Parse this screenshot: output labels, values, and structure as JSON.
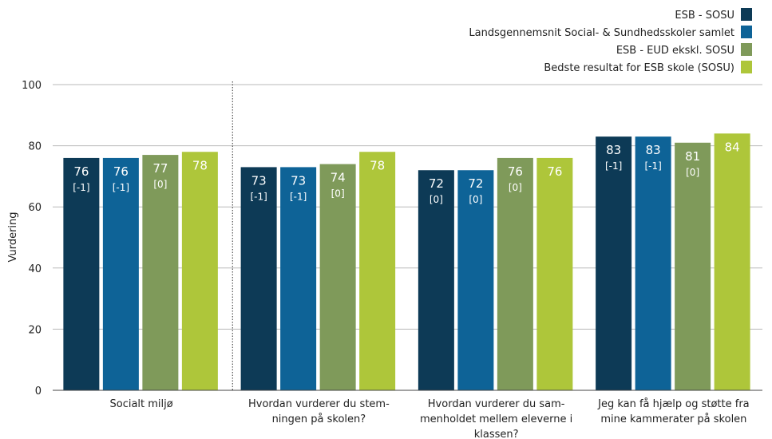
{
  "colors": {
    "esb_sosu": "#0d3a56",
    "landsgennemsnit": "#0e6397",
    "esb_eud": "#7f9a5a",
    "bedste": "#aec63a",
    "grid": "#b9b9b9",
    "axis": "#444444"
  },
  "chart_data": {
    "type": "bar",
    "ylabel": "Vurdering",
    "ylim": [
      0,
      100
    ],
    "yticks": [
      "0",
      "20",
      "40",
      "60",
      "80",
      "100"
    ],
    "ytick_values": [
      0,
      20,
      40,
      60,
      80,
      100
    ],
    "grid": true,
    "legend_position": "top-right",
    "categories": [
      [
        "Socialt miljø"
      ],
      [
        "Hvordan vurderer du stem-",
        "ningen på skolen?"
      ],
      [
        "Hvordan vurderer du sam-",
        "menholdet mellem eleverne i",
        "klassen?"
      ],
      [
        "Jeg kan få hjælp og støtte fra",
        "mine kammerater på skolen"
      ]
    ],
    "series": [
      {
        "name": "ESB - SOSU",
        "color_key": "esb_sosu",
        "values": [
          76,
          73,
          72,
          83
        ],
        "labels": [
          "76",
          "73",
          "72",
          "83"
        ],
        "deltas": [
          "[-1]",
          "[-1]",
          "[0]",
          "[-1]"
        ]
      },
      {
        "name": "Landsgennemsnit Social- & Sundhedsskoler samlet",
        "color_key": "landsgennemsnit",
        "values": [
          76,
          73,
          72,
          83
        ],
        "labels": [
          "76",
          "73",
          "72",
          "83"
        ],
        "deltas": [
          "[-1]",
          "[-1]",
          "[0]",
          "[-1]"
        ]
      },
      {
        "name": "ESB - EUD ekskl. SOSU",
        "color_key": "esb_eud",
        "values": [
          77,
          74,
          76,
          81
        ],
        "labels": [
          "77",
          "74",
          "76",
          "81"
        ],
        "deltas": [
          "[0]",
          "[0]",
          "[0]",
          "[0]"
        ]
      },
      {
        "name": "Bedste resultat for ESB skole (SOSU)",
        "color_key": "bedste",
        "values": [
          78,
          78,
          76,
          84
        ],
        "labels": [
          "78",
          "78",
          "76",
          "84"
        ],
        "deltas": [
          "",
          "",
          "",
          ""
        ]
      }
    ]
  }
}
